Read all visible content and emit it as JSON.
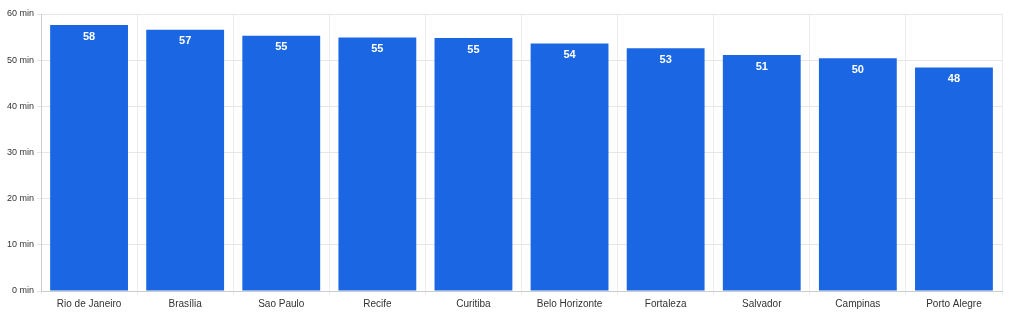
{
  "chart_data": {
    "type": "bar",
    "categories": [
      "Rio de Janeiro",
      "Brasília",
      "Sao Paulo",
      "Recife",
      "Curitiba",
      "Belo Horizonte",
      "Fortaleza",
      "Salvador",
      "Campinas",
      "Porto Alegre"
    ],
    "values": [
      57.6,
      56.6,
      55.3,
      54.9,
      54.8,
      53.6,
      52.6,
      51.1,
      50.4,
      48.4
    ],
    "value_labels": [
      "58",
      "57",
      "55",
      "55",
      "55",
      "54",
      "53",
      "51",
      "50",
      "48"
    ],
    "color": "#1a66e3",
    "ylim": [
      0,
      60
    ],
    "yticks": [
      {
        "value": 0,
        "label": "0 min"
      },
      {
        "value": 10,
        "label": "10 min"
      },
      {
        "value": 20,
        "label": "20 min"
      },
      {
        "value": 30,
        "label": "30 min"
      },
      {
        "value": 40,
        "label": "40 min"
      },
      {
        "value": 50,
        "label": "50 min"
      },
      {
        "value": 60,
        "label": "60 min"
      }
    ],
    "grid": true,
    "data_labels": true
  }
}
